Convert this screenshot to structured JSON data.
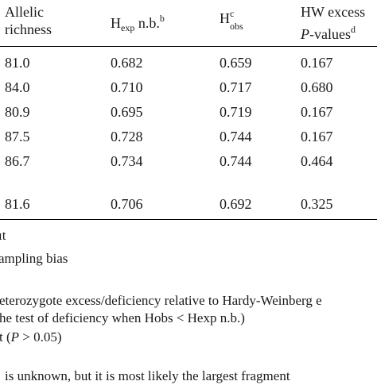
{
  "header": {
    "col1_line1": "Allelic",
    "col1_line2": "richness",
    "col2_base": "H",
    "col2_sub": "exp",
    "col2_suffix": " n.b.",
    "col2_sup": "b",
    "col3_base": "H",
    "col3_sup": "c",
    "col3_sub": "obs",
    "col4_line1": "HW excess",
    "col4_line2_italic": "P",
    "col4_line2_rest": "-values",
    "col4_sup": "d"
  },
  "rows": [
    [
      "81.0",
      "0.682",
      "0.659",
      "0.167"
    ],
    [
      "84.0",
      "0.710",
      "0.717",
      "0.680"
    ],
    [
      "80.9",
      "0.695",
      "0.719",
      "0.167"
    ],
    [
      "87.5",
      "0.728",
      "0.744",
      "0.167"
    ],
    [
      "86.7",
      "0.734",
      "0.744",
      "0.464"
    ],
    [
      "81.6",
      "0.706",
      "0.692",
      "0.325"
    ]
  ],
  "footnotes": {
    "f1": "ıt",
    "f2": "ampling bias",
    "f3": "eterozygote excess/deficiency relative to Hardy-Weinberg e",
    "f4": "he test of deficiency when Hobs < Hexp n.b.)",
    "f5_pre": "t (",
    "f5_italic": "P",
    "f5_post": " > 0.05)",
    "f6": "is unknown, but it is most likely the largest fragment"
  }
}
